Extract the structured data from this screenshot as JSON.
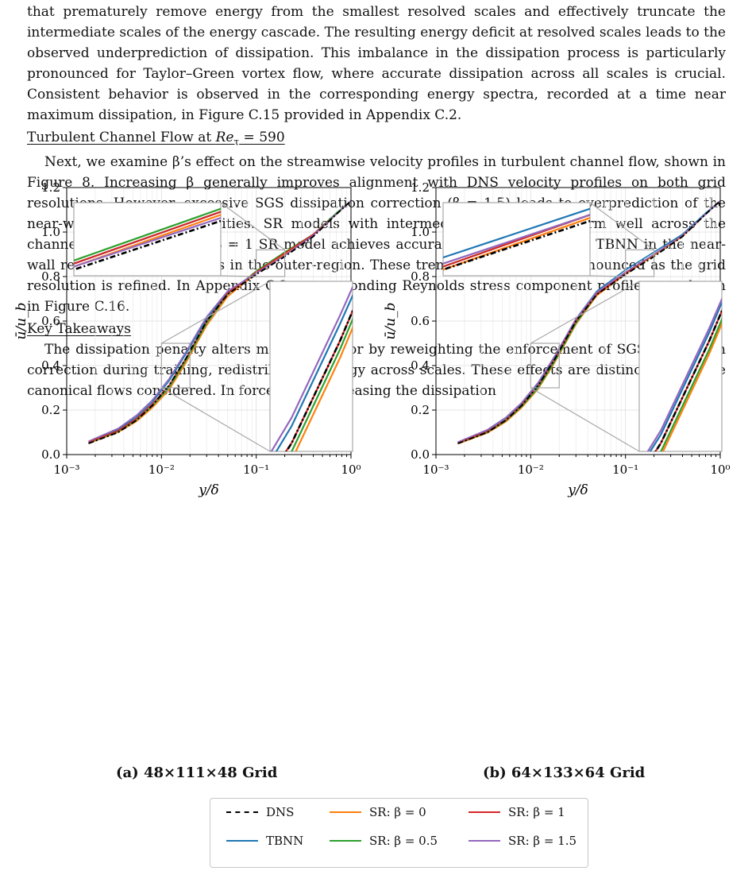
{
  "body": {
    "para1": "that prematurely remove energy from the smallest resolved scales and effectively truncate the intermediate scales of the energy cascade. The resulting energy deficit at resolved scales leads to the observed underprediction of dissipation. This imbalance in the dissipation process is particularly pronounced for Taylor–Green vortex flow, where accurate dissipation across all scales is crucial. Consistent behavior is observed in the corresponding energy spectra, recorded at a time near maximum dissipation, in Figure C.15 provided in Appendix C.2.",
    "heading1": "Turbulent Channel Flow at Re_τ = 590",
    "para2": "Next, we examine β’s effect on the streamwise velocity profiles in turbulent channel flow, shown in Figure 8. Increasing β generally improves alignment with DNS velocity profiles on both grid resolutions. However, excessive SGS dissipation correction (β = 1.5) leads to overprediction of the near-wall streamwise velocities. SR models with intermediate β values perform well across the channel. In particular, the β = 1 SR model achieves accuracy comparable to the TBNN in the near-wall region and outperforms in the outer-region. These trends become more pronounced as the grid resolution is refined. In Appendix C.2, corresponding Reynolds stress component profiles are shown in Figure C.16.",
    "heading2": "Key Takeaways",
    "para3": "The dissipation penalty alters model behavior by reweighting the enforcement of SGS dissipation correction during training, redistributing energy across scales. These effects are distinct among the canonical flows considered. In forced HIT, increasing the dissipation"
  },
  "figure": {
    "caption_a": "(a) 48×111×48 Grid",
    "caption_b": "(b) 64×133×64 Grid",
    "xlabel": "y/δ",
    "ylabel": "ū/u_b",
    "y_ticks": [
      "0.0",
      "0.2",
      "0.4",
      "0.6",
      "0.8",
      "1.0",
      "1.2"
    ],
    "x_ticks": [
      "10⁻³",
      "10⁻²",
      "10⁻¹",
      "10⁰"
    ]
  },
  "legend": [
    {
      "label": "DNS",
      "color": "#000000",
      "dash": "dashdot"
    },
    {
      "label": "SR: β = 0",
      "color": "#ff7f0e",
      "dash": "solid"
    },
    {
      "label": "SR: β = 1",
      "color": "#d62728",
      "dash": "solid"
    },
    {
      "label": "TBNN",
      "color": "#1f77b4",
      "dash": "solid"
    },
    {
      "label": "SR: β = 0.5",
      "color": "#2ca02c",
      "dash": "solid"
    },
    {
      "label": "SR: β = 1.5",
      "color": "#9467bd",
      "dash": "solid"
    }
  ],
  "chart_data": [
    {
      "type": "line",
      "title": "(a) 48×111×48 Grid",
      "xlabel": "y/δ",
      "ylabel": "ū/u_b",
      "xscale": "log",
      "xlim": [
        0.001,
        1
      ],
      "ylim": [
        0,
        1.2
      ],
      "grid": true,
      "x": [
        0.0017,
        0.0035,
        0.0055,
        0.008,
        0.012,
        0.018,
        0.03,
        0.05,
        0.1,
        0.2,
        0.4,
        0.7,
        1.0
      ],
      "series": [
        {
          "name": "DNS",
          "values": [
            0.05,
            0.1,
            0.155,
            0.22,
            0.31,
            0.43,
            0.6,
            0.72,
            0.81,
            0.89,
            0.98,
            1.08,
            1.14
          ]
        },
        {
          "name": "TBNN",
          "values": [
            0.058,
            0.113,
            0.17,
            0.236,
            0.33,
            0.45,
            0.61,
            0.73,
            0.82,
            0.905,
            0.99,
            1.085,
            1.14
          ]
        },
        {
          "name": "SR: β = 0",
          "values": [
            0.05,
            0.1,
            0.15,
            0.21,
            0.29,
            0.41,
            0.58,
            0.71,
            0.815,
            0.9,
            0.985,
            1.08,
            1.14
          ]
        },
        {
          "name": "SR: β = 0.5",
          "values": [
            0.052,
            0.104,
            0.157,
            0.218,
            0.3,
            0.42,
            0.59,
            0.72,
            0.825,
            0.91,
            0.99,
            1.085,
            1.14
          ]
        },
        {
          "name": "SR: β = 1",
          "values": [
            0.055,
            0.108,
            0.163,
            0.227,
            0.31,
            0.43,
            0.6,
            0.725,
            0.82,
            0.905,
            0.99,
            1.08,
            1.14
          ]
        },
        {
          "name": "SR: β = 1.5",
          "values": [
            0.06,
            0.118,
            0.178,
            0.245,
            0.34,
            0.46,
            0.62,
            0.735,
            0.815,
            0.895,
            0.985,
            1.08,
            1.14
          ]
        }
      ]
    },
    {
      "type": "line",
      "title": "(b) 64×133×64 Grid",
      "xlabel": "y/δ",
      "ylabel": "ū/u_b",
      "xscale": "log",
      "xlim": [
        0.001,
        1
      ],
      "ylim": [
        0,
        1.2
      ],
      "grid": true,
      "x": [
        0.0017,
        0.0035,
        0.0055,
        0.008,
        0.012,
        0.018,
        0.03,
        0.05,
        0.1,
        0.2,
        0.4,
        0.7,
        1.0
      ],
      "series": [
        {
          "name": "DNS",
          "values": [
            0.05,
            0.1,
            0.155,
            0.22,
            0.31,
            0.43,
            0.6,
            0.72,
            0.81,
            0.89,
            0.98,
            1.08,
            1.14
          ]
        },
        {
          "name": "TBNN",
          "values": [
            0.055,
            0.11,
            0.165,
            0.23,
            0.32,
            0.44,
            0.61,
            0.735,
            0.83,
            0.91,
            0.99,
            1.085,
            1.14
          ]
        },
        {
          "name": "SR: β = 0",
          "values": [
            0.048,
            0.097,
            0.148,
            0.21,
            0.295,
            0.415,
            0.585,
            0.715,
            0.81,
            0.895,
            0.98,
            1.08,
            1.14
          ]
        },
        {
          "name": "SR: β = 0.5",
          "values": [
            0.05,
            0.1,
            0.152,
            0.215,
            0.3,
            0.42,
            0.59,
            0.72,
            0.815,
            0.9,
            0.985,
            1.08,
            1.14
          ]
        },
        {
          "name": "SR: β = 1",
          "values": [
            0.052,
            0.104,
            0.157,
            0.222,
            0.31,
            0.43,
            0.6,
            0.722,
            0.815,
            0.9,
            0.985,
            1.08,
            1.14
          ]
        },
        {
          "name": "SR: β = 1.5",
          "values": [
            0.056,
            0.112,
            0.168,
            0.233,
            0.325,
            0.445,
            0.61,
            0.73,
            0.82,
            0.9,
            0.985,
            1.08,
            1.14
          ]
        }
      ]
    }
  ]
}
